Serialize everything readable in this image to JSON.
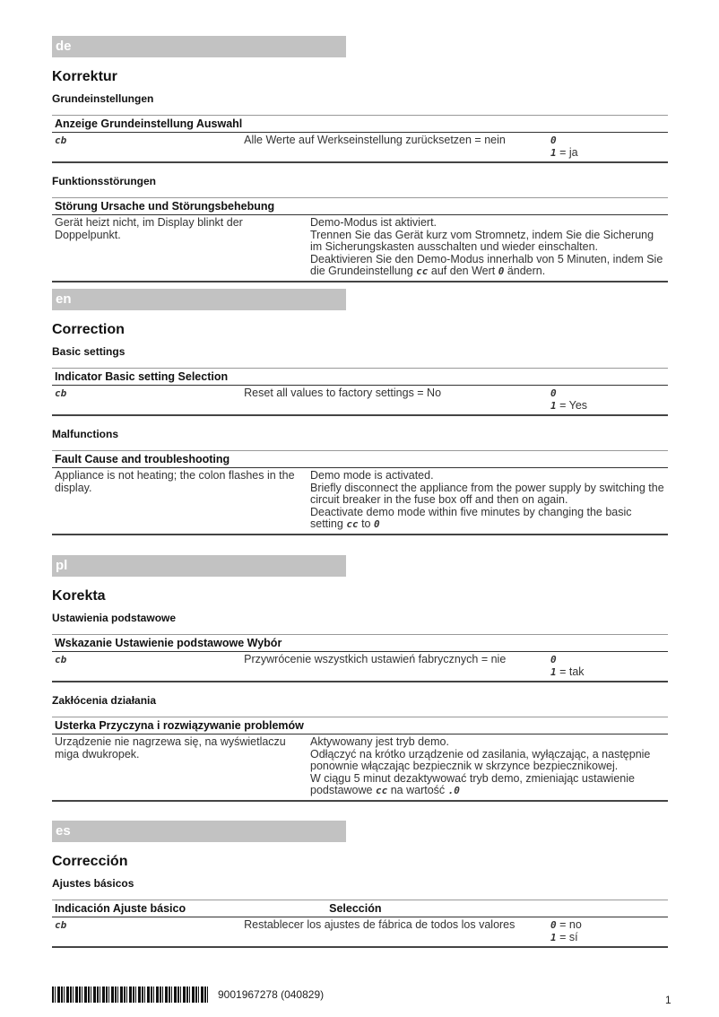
{
  "sections": [
    {
      "lang": "de",
      "title": "Korrektur",
      "basic_heading": "Grundeinstellungen",
      "basic_header": "Anzeige Grundeinstellung Auswahl",
      "basic_header_sel": "",
      "basic_row": {
        "display": "cb",
        "desc": "Alle Werte auf Werkseinstellung zurücksetzen  = nein",
        "opt0": "0",
        "opt0_label": "",
        "opt1": "1",
        "opt1_label": "= ja"
      },
      "fault_heading": "Funktionsstörungen",
      "fault_header": "Störung Ursache und Störungsbehebung",
      "fault_row": {
        "problem": "Gerät heizt nicht, im Display blinkt der Doppelpunkt.",
        "lines": [
          "Demo-Modus ist aktiviert.",
          "Trennen Sie das Gerät kurz vom Stromnetz, indem Sie die Sicherung im Sicherungskasten ausschalten und wieder einschalten.",
          "Deaktivieren Sie den Demo-Modus innerhalb von 5 Minuten, indem Sie die Grundeinstellung"
        ],
        "code": "cc",
        "after": "auf den Wert",
        "value": "0",
        "tail": "ändern."
      }
    },
    {
      "lang": "en",
      "title": "Correction",
      "basic_heading": "Basic settings",
      "basic_header": "Indicator Basic setting Selection",
      "basic_header_sel": "",
      "basic_row": {
        "display": "cb",
        "desc": "Reset all values to factory settings  = No",
        "opt0": "0",
        "opt0_label": "",
        "opt1": "1",
        "opt1_label": "= Yes"
      },
      "fault_heading": "Malfunctions",
      "fault_header": "Fault Cause and troubleshooting",
      "fault_row": {
        "problem": "Appliance is not heating; the colon flashes in the display.",
        "lines": [
          "Demo mode is activated.",
          "Briefly disconnect the appliance from the power supply by switching the circuit breaker in the fuse box off and then on again.",
          "Deactivate demo mode within five minutes by changing the basic setting"
        ],
        "code": "cc",
        "after": "to",
        "value": "0",
        "tail": ""
      }
    },
    {
      "lang": "pl",
      "title": "Korekta",
      "basic_heading": "Ustawienia podstawowe",
      "basic_header": "Wskazanie Ustawienie podstawowe Wybór",
      "basic_header_sel": "",
      "basic_row": {
        "display": "cb",
        "desc": "Przywrócenie wszystkich ustawień fabrycznych  = nie",
        "opt0": "0",
        "opt0_label": "",
        "opt1": "1",
        "opt1_label": "= tak"
      },
      "fault_heading": "Zakłócenia działania",
      "fault_header": "Usterka Przyczyna i rozwiązywanie problemów",
      "fault_row": {
        "problem": "Urządzenie nie nagrzewa się, na wyświetlaczu miga dwukropek.",
        "lines": [
          "Aktywowany jest tryb demo.",
          "Odłączyć na krótko urządzenie od zasilania, wyłączając, a następnie ponownie włączając bezpiecznik w skrzynce bezpiecznikowej.",
          "W ciągu 5 minut dezaktywować tryb demo, zmieniając ustawienie podstawowe"
        ],
        "code": "cc",
        "after": "na wartość",
        "value": ".0",
        "tail": ""
      }
    },
    {
      "lang": "es",
      "title": "Corrección",
      "basic_heading": "Ajustes básicos",
      "basic_header": "Indicación Ajuste básico",
      "basic_header_sel": "Selección",
      "basic_row": {
        "display": "cb",
        "desc": "Restablecer los ajustes de fábrica de todos los valores",
        "opt0": "0",
        "opt0_label": "= no",
        "opt1": "1",
        "opt1_label": "= sí"
      }
    }
  ],
  "footer": {
    "code": "9001967278   (040829)",
    "page": "1"
  }
}
